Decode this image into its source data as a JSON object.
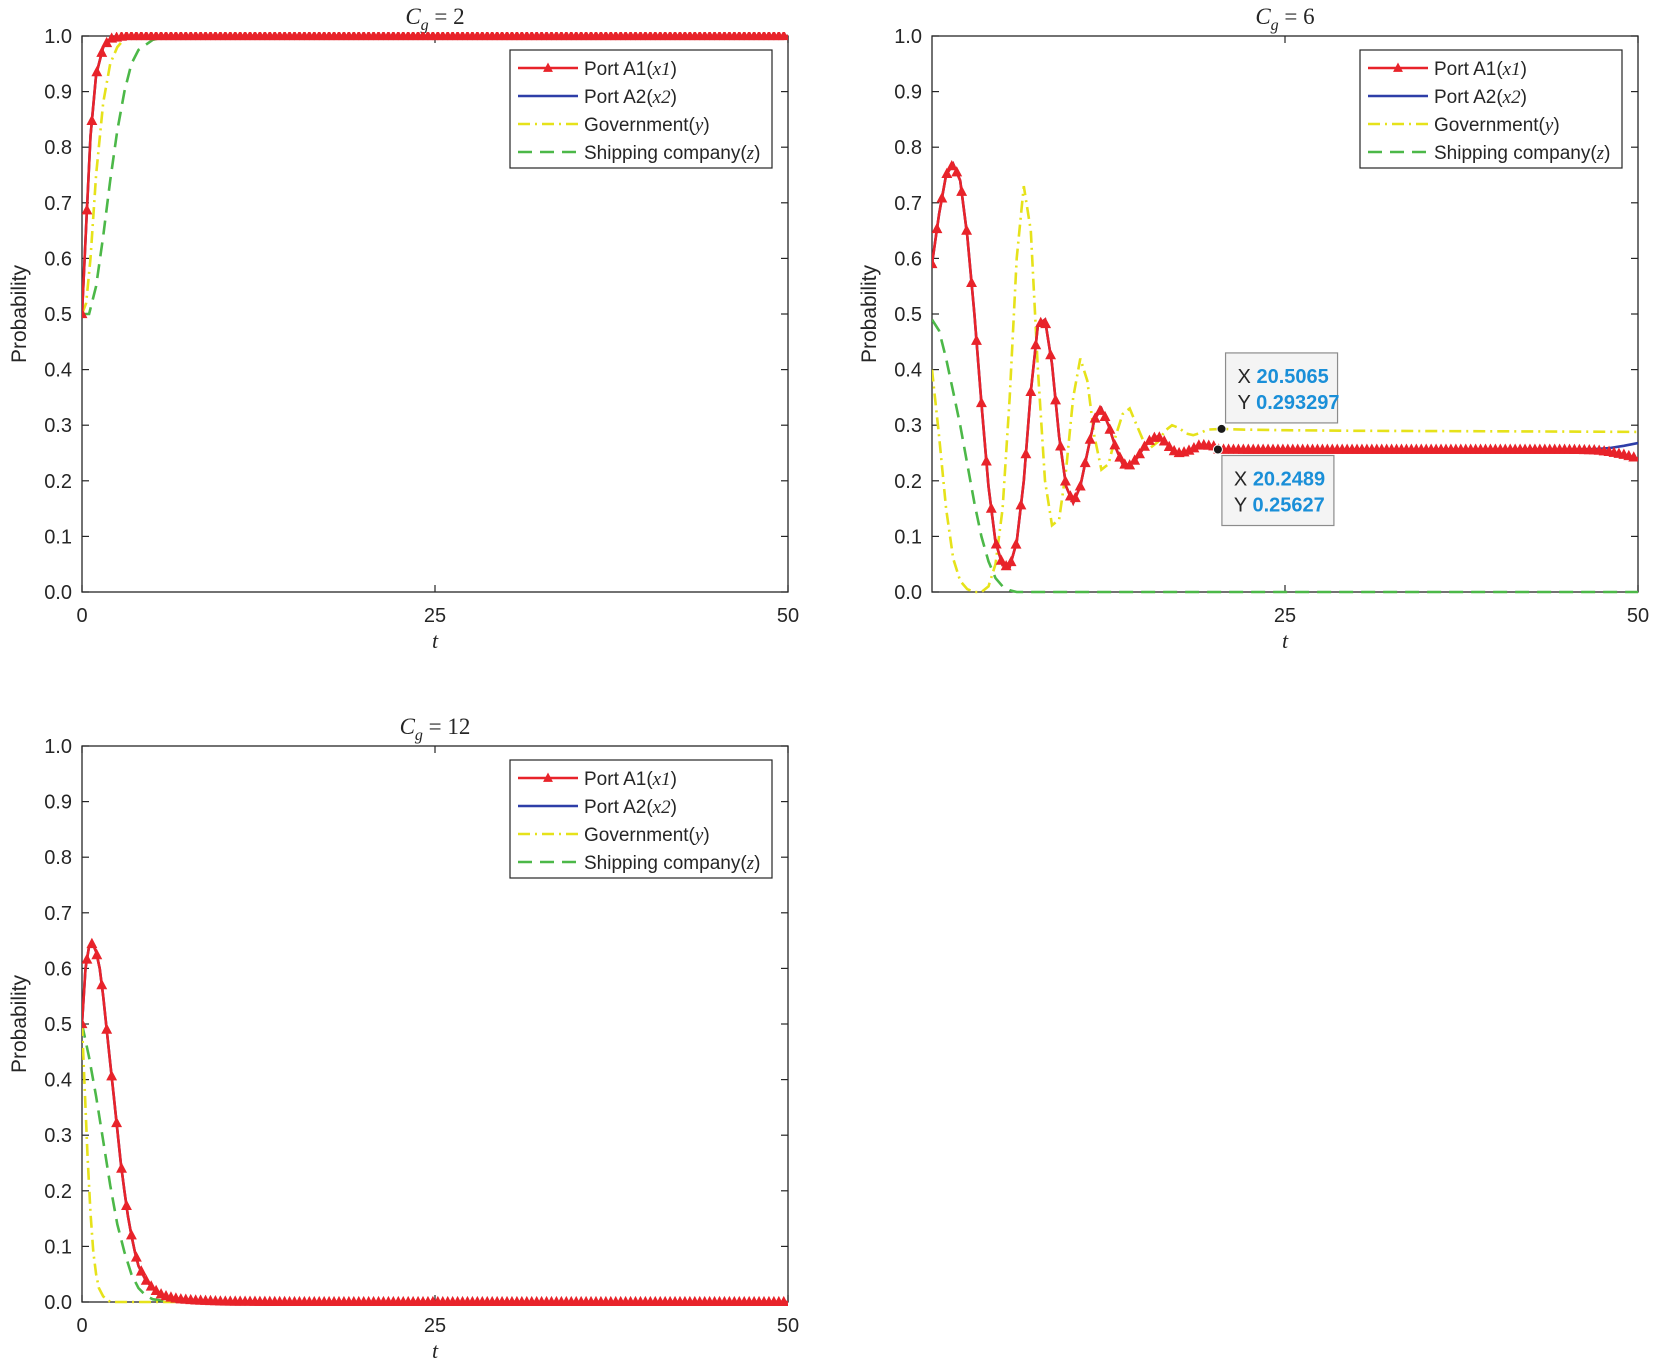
{
  "colors": {
    "x1": "#e8232a",
    "x2": "#2e3ea8",
    "y": "#e6e21a",
    "z": "#4cb848",
    "datatip_value": "#1a8fd8"
  },
  "chart_data": [
    {
      "type": "line",
      "title": "C_g = 2",
      "title_parts": {
        "base": "C",
        "sub": "g",
        "rest": " = 2"
      },
      "xlabel": "t",
      "ylabel": "Probability",
      "xlim": [
        0,
        50
      ],
      "ylim": [
        0,
        1
      ],
      "xticks": [
        "0",
        "25",
        "50"
      ],
      "yticks": [
        "0.0",
        "0.1",
        "0.2",
        "0.3",
        "0.4",
        "0.5",
        "0.6",
        "0.7",
        "0.8",
        "0.9",
        "1.0"
      ],
      "grid": false,
      "legend_position": "top-right",
      "series": [
        {
          "key": "x1",
          "name": "Port A1(x1)",
          "label": {
            "text": "Port A1(",
            "var": "x1"
          },
          "style": "solid-triangle",
          "x": [
            0,
            0.3,
            0.6,
            1,
            1.5,
            2,
            3,
            5,
            10,
            25,
            50
          ],
          "y": [
            0.5,
            0.66,
            0.82,
            0.93,
            0.98,
            0.995,
            1.0,
            1.0,
            1.0,
            1.0,
            1.0
          ]
        },
        {
          "key": "x2",
          "name": "Port A2(x2)",
          "label": {
            "text": "Port A2(",
            "var": "x2"
          },
          "style": "solid",
          "x": [
            0,
            0.3,
            0.6,
            1,
            1.5,
            2,
            3,
            5,
            10,
            25,
            50
          ],
          "y": [
            0.5,
            0.66,
            0.82,
            0.93,
            0.98,
            0.995,
            1.0,
            1.0,
            1.0,
            1.0,
            1.0
          ]
        },
        {
          "key": "y",
          "name": "Government(y)",
          "label": {
            "text": "Government(",
            "var": "y"
          },
          "style": "dashdot",
          "x": [
            0,
            0.3,
            0.6,
            1,
            1.5,
            2,
            2.5,
            3,
            4,
            10,
            50
          ],
          "y": [
            0.5,
            0.52,
            0.6,
            0.75,
            0.88,
            0.95,
            0.98,
            0.995,
            1.0,
            1.0,
            1.0
          ]
        },
        {
          "key": "z",
          "name": "Shipping company(z)",
          "label": {
            "text": "Shipping company(",
            "var": "z"
          },
          "style": "dashed",
          "x": [
            0,
            0.5,
            1,
            1.5,
            2,
            2.5,
            3,
            3.5,
            4,
            5,
            6,
            7,
            10,
            25,
            50
          ],
          "y": [
            0.5,
            0.5,
            0.55,
            0.64,
            0.74,
            0.83,
            0.9,
            0.95,
            0.975,
            0.993,
            0.999,
            1.0,
            1.0,
            1.0,
            1.0
          ]
        }
      ],
      "datatips": []
    },
    {
      "type": "line",
      "title": "C_g = 6",
      "title_parts": {
        "base": "C",
        "sub": "g",
        "rest": " = 6"
      },
      "xlabel": "t",
      "ylabel": "Probability",
      "xlim": [
        0,
        50
      ],
      "ylim": [
        0,
        1
      ],
      "xticks": [
        "25",
        "50"
      ],
      "yticks": [
        "0.0",
        "0.1",
        "0.2",
        "0.3",
        "0.4",
        "0.5",
        "0.6",
        "0.7",
        "0.8",
        "0.9",
        "1.0"
      ],
      "grid": false,
      "legend_position": "top-right",
      "series": [
        {
          "key": "x1",
          "name": "Port A1(x1)",
          "label": {
            "text": "Port A1(",
            "var": "x1"
          },
          "style": "solid-triangle",
          "x": [
            0,
            0.5,
            1,
            1.5,
            2,
            2.5,
            3,
            3.5,
            4,
            4.5,
            5,
            5.5,
            6,
            6.5,
            7,
            7.5,
            8,
            8.5,
            9,
            9.5,
            10,
            10.5,
            11,
            11.5,
            12,
            12.5,
            13,
            13.5,
            14,
            14.5,
            15,
            15.5,
            16,
            16.5,
            17,
            17.5,
            18,
            18.5,
            19,
            20,
            20.25,
            22,
            25,
            30,
            40,
            45,
            47,
            48,
            49,
            50
          ],
          "y": [
            0.59,
            0.68,
            0.75,
            0.77,
            0.74,
            0.64,
            0.5,
            0.34,
            0.19,
            0.09,
            0.048,
            0.045,
            0.09,
            0.2,
            0.36,
            0.48,
            0.49,
            0.41,
            0.28,
            0.19,
            0.16,
            0.19,
            0.25,
            0.31,
            0.33,
            0.3,
            0.26,
            0.23,
            0.228,
            0.24,
            0.26,
            0.275,
            0.28,
            0.27,
            0.255,
            0.25,
            0.252,
            0.258,
            0.265,
            0.262,
            0.25627,
            0.256,
            0.256,
            0.256,
            0.256,
            0.256,
            0.255,
            0.252,
            0.247,
            0.24
          ]
        },
        {
          "key": "x2",
          "name": "Port A2(x2)",
          "label": {
            "text": "Port A2(",
            "var": "x2"
          },
          "style": "solid",
          "x": [
            0,
            0.5,
            1,
            1.5,
            2,
            2.5,
            3,
            3.5,
            4,
            4.5,
            5,
            5.5,
            6,
            6.5,
            7,
            7.5,
            8,
            8.5,
            9,
            9.5,
            10,
            10.5,
            11,
            11.5,
            12,
            12.5,
            13,
            13.5,
            14,
            14.5,
            15,
            15.5,
            16,
            16.5,
            17,
            17.5,
            18,
            18.5,
            19,
            20,
            20.25,
            22,
            25,
            30,
            40,
            45,
            47,
            48,
            49,
            50
          ],
          "y": [
            0.59,
            0.68,
            0.75,
            0.77,
            0.74,
            0.64,
            0.5,
            0.34,
            0.19,
            0.09,
            0.048,
            0.045,
            0.09,
            0.2,
            0.36,
            0.48,
            0.49,
            0.41,
            0.28,
            0.19,
            0.16,
            0.19,
            0.25,
            0.31,
            0.33,
            0.3,
            0.26,
            0.23,
            0.228,
            0.24,
            0.26,
            0.275,
            0.28,
            0.27,
            0.255,
            0.25,
            0.252,
            0.258,
            0.265,
            0.262,
            0.25627,
            0.256,
            0.256,
            0.256,
            0.256,
            0.256,
            0.257,
            0.259,
            0.263,
            0.268
          ]
        },
        {
          "key": "y",
          "name": "Government(y)",
          "label": {
            "text": "Government(",
            "var": "y"
          },
          "style": "dashdot",
          "x": [
            0,
            0.5,
            1,
            1.5,
            2,
            2.5,
            3,
            3.5,
            4,
            4.5,
            5,
            5.5,
            6,
            6.5,
            7,
            7.5,
            8,
            8.5,
            9,
            9.5,
            10,
            10.5,
            11,
            11.5,
            12,
            12.5,
            13,
            13.5,
            14,
            14.5,
            15,
            15.5,
            16,
            16.5,
            17,
            17.5,
            18,
            18.5,
            19,
            19.5,
            20.5,
            22,
            25,
            30,
            40,
            50
          ],
          "y": [
            0.4,
            0.28,
            0.15,
            0.06,
            0.02,
            0.005,
            0.0,
            0.0,
            0.01,
            0.05,
            0.15,
            0.35,
            0.6,
            0.73,
            0.65,
            0.4,
            0.2,
            0.12,
            0.13,
            0.22,
            0.35,
            0.42,
            0.38,
            0.28,
            0.22,
            0.23,
            0.28,
            0.32,
            0.33,
            0.3,
            0.27,
            0.26,
            0.27,
            0.29,
            0.3,
            0.295,
            0.285,
            0.282,
            0.286,
            0.292,
            0.293297,
            0.292,
            0.291,
            0.29,
            0.289,
            0.288
          ]
        },
        {
          "key": "z",
          "name": "Shipping company(z)",
          "label": {
            "text": "Shipping company(",
            "var": "z"
          },
          "style": "dashed",
          "x": [
            0,
            0.5,
            1,
            1.5,
            2,
            2.5,
            3,
            3.5,
            4,
            4.5,
            5,
            5.5,
            6,
            7,
            10,
            25,
            50
          ],
          "y": [
            0.49,
            0.47,
            0.42,
            0.36,
            0.3,
            0.23,
            0.16,
            0.1,
            0.055,
            0.025,
            0.01,
            0.003,
            0.0,
            0.0,
            0.0,
            0.0,
            0.0
          ]
        }
      ],
      "datatips": [
        {
          "series": "y",
          "x_label": "X",
          "y_label": "Y",
          "x": 20.5065,
          "y": 0.293297,
          "x_text": "20.5065",
          "y_text": "0.293297",
          "placement": "above"
        },
        {
          "series": "x1",
          "x_label": "X",
          "y_label": "Y",
          "x": 20.2489,
          "y": 0.25627,
          "x_text": "20.2489",
          "y_text": "0.25627",
          "placement": "below"
        }
      ]
    },
    {
      "type": "line",
      "title": "C_g = 12",
      "title_parts": {
        "base": "C",
        "sub": "g",
        "rest": " = 12"
      },
      "xlabel": "t",
      "ylabel": "Probability",
      "xlim": [
        0,
        50
      ],
      "ylim": [
        0,
        1
      ],
      "xticks": [
        "0",
        "25",
        "50"
      ],
      "yticks": [
        "0.0",
        "0.1",
        "0.2",
        "0.3",
        "0.4",
        "0.5",
        "0.6",
        "0.7",
        "0.8",
        "0.9",
        "1.0"
      ],
      "grid": false,
      "legend_position": "top-right",
      "series": [
        {
          "key": "x1",
          "name": "Port A1(x1)",
          "label": {
            "text": "Port A1(",
            "var": "x1"
          },
          "style": "solid-triangle",
          "x": [
            0,
            0.25,
            0.5,
            0.75,
            1,
            1.25,
            1.5,
            1.75,
            2,
            2.25,
            2.5,
            2.75,
            3,
            3.25,
            3.5,
            3.75,
            4,
            4.5,
            5,
            5.5,
            6,
            6.5,
            7,
            8,
            9,
            10,
            15,
            25,
            50
          ],
          "y": [
            0.5,
            0.6,
            0.64,
            0.645,
            0.63,
            0.6,
            0.55,
            0.49,
            0.43,
            0.37,
            0.31,
            0.25,
            0.2,
            0.155,
            0.12,
            0.09,
            0.065,
            0.04,
            0.025,
            0.015,
            0.01,
            0.007,
            0.005,
            0.003,
            0.002,
            0.001,
            0.0,
            0.0,
            0.0
          ]
        },
        {
          "key": "x2",
          "name": "Port A2(x2)",
          "label": {
            "text": "Port A2(",
            "var": "x2"
          },
          "style": "solid",
          "x": [
            0,
            0.25,
            0.5,
            0.75,
            1,
            1.25,
            1.5,
            1.75,
            2,
            2.25,
            2.5,
            2.75,
            3,
            3.25,
            3.5,
            3.75,
            4,
            4.5,
            5,
            5.5,
            6,
            6.5,
            7,
            8,
            9,
            10,
            15,
            25,
            50
          ],
          "y": [
            0.5,
            0.6,
            0.64,
            0.645,
            0.63,
            0.6,
            0.55,
            0.49,
            0.43,
            0.37,
            0.31,
            0.25,
            0.2,
            0.155,
            0.12,
            0.09,
            0.065,
            0.04,
            0.025,
            0.015,
            0.01,
            0.007,
            0.005,
            0.003,
            0.002,
            0.001,
            0.0,
            0.0,
            0.0
          ]
        },
        {
          "key": "y",
          "name": "Government(y)",
          "label": {
            "text": "Government(",
            "var": "y"
          },
          "style": "dashdot",
          "x": [
            0,
            0.2,
            0.4,
            0.6,
            0.8,
            1,
            1.2,
            1.5,
            2,
            5,
            25,
            50
          ],
          "y": [
            0.5,
            0.38,
            0.26,
            0.16,
            0.09,
            0.05,
            0.025,
            0.01,
            0.0,
            0.0,
            0.0,
            0.0
          ]
        },
        {
          "key": "z",
          "name": "Shipping company(z)",
          "label": {
            "text": "Shipping company(",
            "var": "z"
          },
          "style": "dashed",
          "x": [
            0,
            0.5,
            1,
            1.5,
            2,
            2.5,
            3,
            3.5,
            4,
            4.5,
            5,
            6,
            8,
            25,
            50
          ],
          "y": [
            0.5,
            0.44,
            0.37,
            0.29,
            0.21,
            0.14,
            0.09,
            0.05,
            0.025,
            0.012,
            0.005,
            0.001,
            0.0,
            0.0,
            0.0
          ]
        }
      ],
      "datatips": []
    }
  ]
}
